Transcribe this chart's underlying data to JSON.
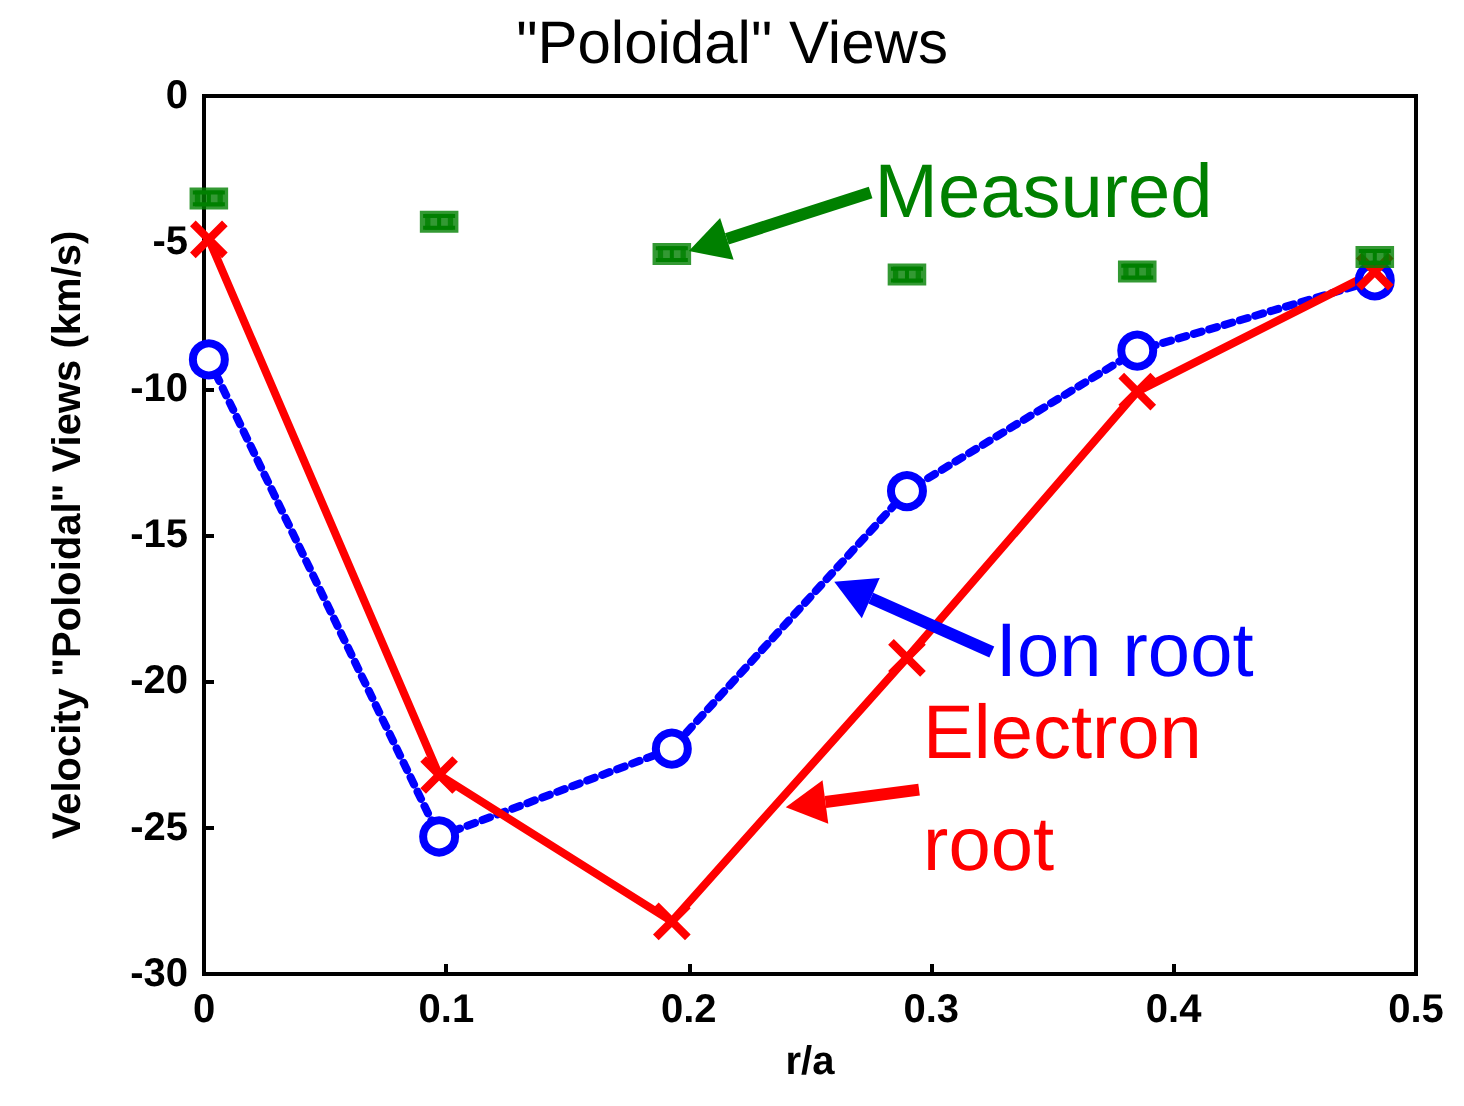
{
  "chart_data": {
    "type": "line",
    "title": "\"Poloidal\" Views",
    "xlabel": "r/a",
    "ylabel": "Velocity \"Poloidal\" Views (km/s)",
    "x": [
      0.002,
      0.097,
      0.193,
      0.29,
      0.385,
      0.483
    ],
    "series": [
      {
        "type": "scatter",
        "color": "#008000",
        "marker": "square",
        "values": [
          -3.5,
          -4.3,
          -5.4,
          -6.1,
          -6.0,
          -5.5
        ],
        "errors": [
          0.2,
          0.2,
          0.2,
          0.2,
          0.2,
          0.2
        ]
      },
      {
        "color": "#0000ff",
        "marker": "circle",
        "line_style": "dotted",
        "values": [
          -9.0,
          -25.3,
          -22.3,
          -13.5,
          -8.7,
          -6.3
        ]
      },
      {
        "color": "#ff0000",
        "marker": "cross",
        "line_style": "solid",
        "values": [
          -4.9,
          -23.2,
          -28.2,
          -19.2,
          -10.1,
          -6.0
        ]
      }
    ],
    "annotations": [
      {
        "text": "Measured",
        "x": 0.2,
        "y": -5.3
      },
      {
        "text": "Ion root",
        "x": 0.26,
        "y": -16.6
      },
      {
        "text": "Electron root",
        "x": 0.24,
        "y": -24.3
      }
    ],
    "xlim": [
      0,
      0.5
    ],
    "xticks": [
      0,
      0.1,
      0.2,
      0.3,
      0.4,
      0.5
    ],
    "ylim": [
      -30,
      0
    ],
    "yticks": [
      -30,
      -25,
      -20,
      -15,
      -10,
      -5,
      0
    ],
    "grid": false
  }
}
